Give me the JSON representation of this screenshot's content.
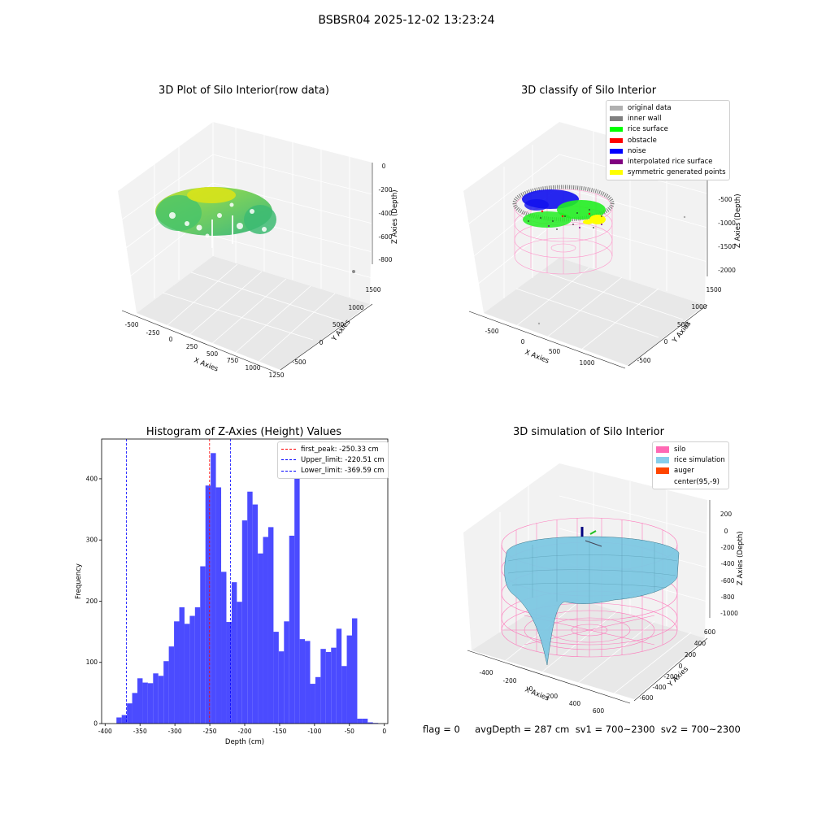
{
  "suptitle": "BSBSR04 2025-12-02 13:23:24",
  "footer_text": "flag = 0     avgDepth = 287 cm  sv1 = 700~2300  sv2 = 700~2300",
  "panels": {
    "raw": {
      "title": "3D Plot of Silo Interior(row data)",
      "xlabel": "X Axies",
      "ylabel": "Y Axies",
      "zlabel": "Z Axies (Depth)",
      "xticks": [
        "-500",
        "-250",
        "0",
        "250",
        "500",
        "750",
        "1000",
        "1250"
      ],
      "yticks": [
        "-500",
        "0",
        "500",
        "1000",
        "1500"
      ],
      "zticks": [
        "0",
        "-200",
        "-400",
        "-600",
        "-800"
      ]
    },
    "classify": {
      "title": "3D classify of Silo Interior",
      "xlabel": "X Axies",
      "ylabel": "Y Axies",
      "zlabel": "Z Axies (Depth)",
      "xticks": [
        "-500",
        "0",
        "500",
        "1000"
      ],
      "yticks": [
        "-500",
        "0",
        "500",
        "1000",
        "1500"
      ],
      "zticks": [
        "-500",
        "-1000",
        "-1500",
        "-2000"
      ],
      "legend": [
        {
          "label": "original data",
          "color": "#b0b0b0"
        },
        {
          "label": "inner wall",
          "color": "#808080"
        },
        {
          "label": "rice surface",
          "color": "#00ff00"
        },
        {
          "label": "obstacle",
          "color": "#ff0000"
        },
        {
          "label": "noise",
          "color": "#0000ff"
        },
        {
          "label": "interpolated rice surface",
          "color": "#800080"
        },
        {
          "label": "symmetric generated points",
          "color": "#ffff00"
        }
      ]
    },
    "simulation": {
      "title": "3D simulation of Silo Interior",
      "xlabel": "X Axies",
      "ylabel": "Y Axies",
      "zlabel": "Z Axies (Depth)",
      "xticks": [
        "-400",
        "-200",
        "0",
        "200",
        "400",
        "600"
      ],
      "yticks": [
        "-600",
        "-400",
        "-200",
        "0",
        "200",
        "400",
        "600"
      ],
      "zticks": [
        "200",
        "0",
        "-200",
        "-400",
        "-600",
        "-800",
        "-1000"
      ],
      "legend": [
        {
          "label": "silo",
          "color": "#ff69b4"
        },
        {
          "label": "rice simulation",
          "color": "#87ceeb"
        },
        {
          "label": "auger",
          "color": "#ff4500"
        },
        {
          "label": "center(95,-9)",
          "color": "#ffffff"
        }
      ]
    }
  },
  "chart_data": {
    "type": "bar",
    "title": "Histogram of Z-Axies (Height) Values",
    "xlabel": "Depth (cm)",
    "ylabel": "Frequency",
    "xlim": [
      -405,
      5
    ],
    "ylim": [
      0,
      465
    ],
    "xticks": [
      -400,
      -350,
      -300,
      -250,
      -200,
      -150,
      -100,
      -50,
      0
    ],
    "yticks": [
      0,
      100,
      200,
      300,
      400
    ],
    "bar_color": "#4b4bff",
    "bin_width": 7.5,
    "bins": [
      {
        "x": -380.0,
        "v": 10
      },
      {
        "x": -372.5,
        "v": 14
      },
      {
        "x": -365.0,
        "v": 33
      },
      {
        "x": -357.5,
        "v": 50
      },
      {
        "x": -350.0,
        "v": 74
      },
      {
        "x": -342.5,
        "v": 67
      },
      {
        "x": -335.0,
        "v": 66
      },
      {
        "x": -327.5,
        "v": 82
      },
      {
        "x": -320.0,
        "v": 78
      },
      {
        "x": -312.5,
        "v": 102
      },
      {
        "x": -305.0,
        "v": 126
      },
      {
        "x": -297.5,
        "v": 167
      },
      {
        "x": -290.0,
        "v": 190
      },
      {
        "x": -282.5,
        "v": 163
      },
      {
        "x": -275.0,
        "v": 176
      },
      {
        "x": -267.5,
        "v": 190
      },
      {
        "x": -260.0,
        "v": 257
      },
      {
        "x": -252.5,
        "v": 389
      },
      {
        "x": -245.0,
        "v": 442
      },
      {
        "x": -237.5,
        "v": 386
      },
      {
        "x": -230.0,
        "v": 248
      },
      {
        "x": -222.5,
        "v": 166
      },
      {
        "x": -215.0,
        "v": 231
      },
      {
        "x": -207.5,
        "v": 199
      },
      {
        "x": -200.0,
        "v": 332
      },
      {
        "x": -192.5,
        "v": 379
      },
      {
        "x": -185.0,
        "v": 358
      },
      {
        "x": -177.5,
        "v": 278
      },
      {
        "x": -170.0,
        "v": 305
      },
      {
        "x": -162.5,
        "v": 321
      },
      {
        "x": -155.0,
        "v": 150
      },
      {
        "x": -147.5,
        "v": 118
      },
      {
        "x": -140.0,
        "v": 167
      },
      {
        "x": -132.5,
        "v": 307
      },
      {
        "x": -125.0,
        "v": 431
      },
      {
        "x": -117.5,
        "v": 138
      },
      {
        "x": -110.0,
        "v": 135
      },
      {
        "x": -102.5,
        "v": 65
      },
      {
        "x": -95.0,
        "v": 76
      },
      {
        "x": -87.5,
        "v": 122
      },
      {
        "x": -80.0,
        "v": 117
      },
      {
        "x": -72.5,
        "v": 124
      },
      {
        "x": -65.0,
        "v": 155
      },
      {
        "x": -57.5,
        "v": 94
      },
      {
        "x": -50.0,
        "v": 144
      },
      {
        "x": -42.5,
        "v": 172
      },
      {
        "x": -35.0,
        "v": 8
      },
      {
        "x": -27.5,
        "v": 8
      },
      {
        "x": -20.0,
        "v": 2
      },
      {
        "x": -12.5,
        "v": 1
      }
    ],
    "vlines": [
      {
        "label": "first_peak: -250.33 cm",
        "x": -250.33,
        "color": "#ff0000"
      },
      {
        "label": "Upper_limit: -220.51 cm",
        "x": -220.51,
        "color": "#0000ff"
      },
      {
        "label": "Lower_limit: -369.59 cm",
        "x": -369.59,
        "color": "#0000ff"
      }
    ]
  }
}
